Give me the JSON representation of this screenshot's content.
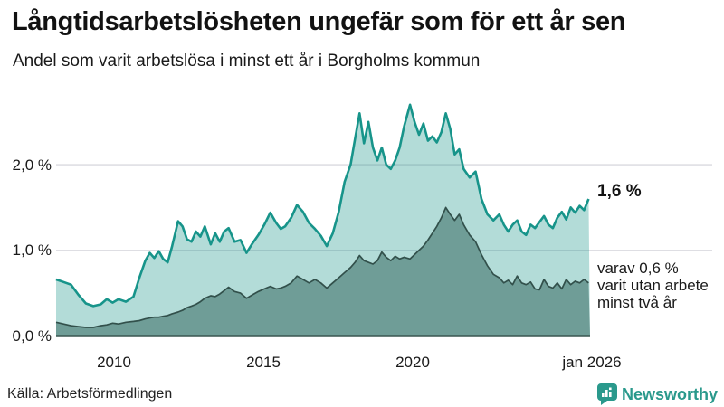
{
  "header": {
    "title": "Långtidsarbetslösheten ungefär som för ett år sen",
    "subtitle": "Andel som varit arbetslösa i minst ett år i Borgholms kommun"
  },
  "chart_data": {
    "type": "area",
    "title": "Långtidsarbetslösheten ungefär som för ett år sen",
    "subtitle": "Andel som varit arbetslösa i minst ett år i Borgholms kommun",
    "xlabel": "",
    "ylabel": "",
    "xlim": [
      2008.1,
      2026.05
    ],
    "ylim": [
      0,
      2.8
    ],
    "grid": "horizontal",
    "legend": "none",
    "x": [
      2008.1,
      2008.35,
      2008.6,
      2008.85,
      2009.1,
      2009.35,
      2009.6,
      2009.8,
      2010.0,
      2010.2,
      2010.45,
      2010.7,
      2010.9,
      2011.1,
      2011.25,
      2011.4,
      2011.55,
      2011.7,
      2011.85,
      2012.0,
      2012.2,
      2012.35,
      2012.5,
      2012.65,
      2012.8,
      2012.95,
      2013.1,
      2013.3,
      2013.45,
      2013.6,
      2013.75,
      2013.9,
      2014.1,
      2014.3,
      2014.5,
      2014.7,
      2014.9,
      2015.1,
      2015.3,
      2015.5,
      2015.65,
      2015.8,
      2016.0,
      2016.2,
      2016.4,
      2016.6,
      2016.8,
      2017.0,
      2017.2,
      2017.4,
      2017.6,
      2017.8,
      2018.0,
      2018.15,
      2018.3,
      2018.45,
      2018.6,
      2018.75,
      2018.9,
      2019.05,
      2019.2,
      2019.35,
      2019.5,
      2019.65,
      2019.8,
      2020.0,
      2020.15,
      2020.3,
      2020.45,
      2020.6,
      2020.75,
      2020.9,
      2021.05,
      2021.2,
      2021.35,
      2021.5,
      2021.65,
      2021.8,
      2022.0,
      2022.2,
      2022.4,
      2022.6,
      2022.8,
      2023.0,
      2023.15,
      2023.3,
      2023.45,
      2023.6,
      2023.75,
      2023.9,
      2024.05,
      2024.2,
      2024.35,
      2024.5,
      2024.65,
      2024.8,
      2024.95,
      2025.1,
      2025.25,
      2025.4,
      2025.55,
      2025.7,
      2025.85,
      2026.0
    ],
    "series": [
      {
        "name": "Andel som varit arbetslösa minst ett år",
        "color": "#17948a",
        "fill": "rgba(23,148,138,0.33)",
        "values": [
          0.66,
          0.63,
          0.6,
          0.48,
          0.38,
          0.35,
          0.37,
          0.43,
          0.39,
          0.43,
          0.4,
          0.46,
          0.68,
          0.88,
          0.97,
          0.91,
          0.99,
          0.9,
          0.86,
          1.05,
          1.34,
          1.28,
          1.13,
          1.1,
          1.22,
          1.16,
          1.28,
          1.07,
          1.2,
          1.1,
          1.22,
          1.26,
          1.1,
          1.12,
          0.97,
          1.08,
          1.18,
          1.3,
          1.44,
          1.32,
          1.25,
          1.28,
          1.38,
          1.53,
          1.45,
          1.32,
          1.25,
          1.17,
          1.05,
          1.2,
          1.45,
          1.8,
          2.0,
          2.3,
          2.6,
          2.25,
          2.5,
          2.2,
          2.05,
          2.2,
          2.0,
          1.95,
          2.05,
          2.2,
          2.45,
          2.7,
          2.5,
          2.35,
          2.48,
          2.28,
          2.33,
          2.26,
          2.38,
          2.6,
          2.42,
          2.12,
          2.18,
          1.95,
          1.85,
          1.92,
          1.6,
          1.42,
          1.35,
          1.42,
          1.3,
          1.22,
          1.3,
          1.35,
          1.22,
          1.18,
          1.3,
          1.26,
          1.33,
          1.4,
          1.3,
          1.26,
          1.38,
          1.45,
          1.36,
          1.5,
          1.44,
          1.52,
          1.47,
          1.6
        ]
      },
      {
        "name": "Andel som varit arbetslösa minst två år",
        "color": "#32504b",
        "fill": "#6f9d97",
        "values": [
          0.16,
          0.14,
          0.12,
          0.11,
          0.1,
          0.1,
          0.12,
          0.13,
          0.15,
          0.14,
          0.16,
          0.17,
          0.18,
          0.2,
          0.21,
          0.22,
          0.22,
          0.23,
          0.24,
          0.26,
          0.28,
          0.3,
          0.33,
          0.35,
          0.37,
          0.4,
          0.44,
          0.47,
          0.46,
          0.49,
          0.53,
          0.57,
          0.52,
          0.5,
          0.44,
          0.48,
          0.52,
          0.55,
          0.58,
          0.55,
          0.56,
          0.58,
          0.62,
          0.7,
          0.66,
          0.62,
          0.66,
          0.62,
          0.56,
          0.62,
          0.68,
          0.74,
          0.8,
          0.86,
          0.94,
          0.88,
          0.86,
          0.84,
          0.88,
          0.98,
          0.92,
          0.88,
          0.93,
          0.9,
          0.92,
          0.9,
          0.95,
          1.0,
          1.05,
          1.12,
          1.2,
          1.28,
          1.38,
          1.5,
          1.42,
          1.35,
          1.42,
          1.3,
          1.18,
          1.1,
          0.95,
          0.82,
          0.72,
          0.68,
          0.62,
          0.65,
          0.6,
          0.7,
          0.62,
          0.6,
          0.63,
          0.55,
          0.54,
          0.66,
          0.58,
          0.56,
          0.62,
          0.55,
          0.66,
          0.6,
          0.64,
          0.62,
          0.66,
          0.62
        ]
      }
    ],
    "y_ticks": [
      {
        "label": "0,0 %",
        "value": 0
      },
      {
        "label": "1,0 %",
        "value": 1
      },
      {
        "label": "2,0 %",
        "value": 2
      }
    ],
    "x_ticks": [
      {
        "label": "2010",
        "year": 2010
      },
      {
        "label": "2015",
        "year": 2015
      },
      {
        "label": "2020",
        "year": 2020
      },
      {
        "label": "jan 2026",
        "year": 2026
      }
    ],
    "annotations": {
      "end_value_primary": "1,6 %",
      "end_secondary_line1": "varav 0,6 %",
      "end_secondary_line2": "varit utan arbete",
      "end_secondary_line3": "minst två år"
    },
    "colors": {
      "line_primary": "#17948a",
      "fill_primary_light": "#b5dbd4",
      "fill_secondary_dark": "#6f9d97",
      "line_secondary": "#32504b",
      "baseline": "#3a5651",
      "gridline": "#d9d9df"
    }
  },
  "footer": {
    "source": "Källa: Arbetsförmedlingen",
    "brand": "Newsworthy",
    "brand_color": "#2a998c"
  }
}
